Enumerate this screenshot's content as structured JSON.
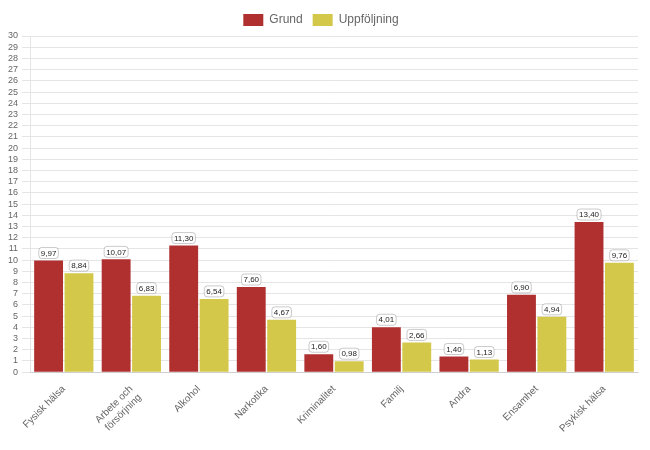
{
  "chart_data": {
    "type": "bar",
    "categories": [
      "Fysisk hälsa",
      "Arbete och\nförsörjning",
      "Alkohol",
      "Narkotika",
      "Kriminalitet",
      "Familj",
      "Andra",
      "Ensamhet",
      "Psykisk hälsa"
    ],
    "series": [
      {
        "name": "Grund",
        "color": "#B03030",
        "values": [
          9.97,
          10.07,
          11.3,
          7.6,
          1.6,
          4.01,
          1.4,
          6.9,
          13.4
        ],
        "value_labels": [
          "9,97",
          "10,07",
          "11,30",
          "7,60",
          "1,60",
          "4,01",
          "1,40",
          "6,90",
          "13,40"
        ]
      },
      {
        "name": "Uppföljning",
        "color": "#D4C84A",
        "values": [
          8.84,
          6.83,
          6.54,
          4.67,
          0.98,
          2.66,
          1.13,
          4.94,
          9.76
        ],
        "value_labels": [
          "8,84",
          "6,83",
          "6,54",
          "4,67",
          "0,98",
          "2,66",
          "1,13",
          "4,94",
          "9,76"
        ]
      }
    ],
    "ylim": [
      0,
      30
    ],
    "yticks": [
      0,
      1,
      2,
      3,
      4,
      5,
      6,
      7,
      8,
      9,
      10,
      11,
      12,
      13,
      14,
      15,
      16,
      17,
      18,
      19,
      20,
      21,
      22,
      23,
      24,
      25,
      26,
      27,
      28,
      29,
      30
    ],
    "grid": true,
    "legend": "top",
    "data_labels": true
  }
}
